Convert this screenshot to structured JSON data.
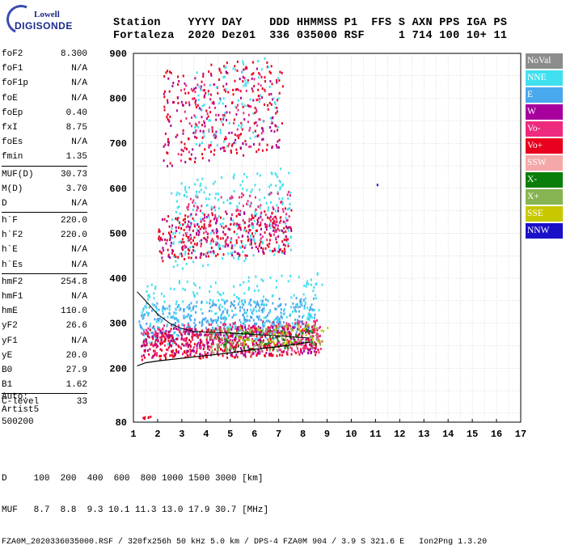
{
  "logo": {
    "line1": "Lowell",
    "line2": "DIGISONDE"
  },
  "header": {
    "labels": "Station    YYYY DAY    DDD HHMMSS P1  FFS S AXN PPS IGA PS",
    "values": "Fortaleza  2020 Dez01  336 035000 RSF     1 714 100 10+ 11"
  },
  "params": {
    "group1": [
      {
        "label": "foF2",
        "value": "8.300"
      },
      {
        "label": "foF1",
        "value": "N/A"
      },
      {
        "label": "foF1p",
        "value": "N/A"
      },
      {
        "label": "foE",
        "value": "N/A"
      },
      {
        "label": "foEp",
        "value": "0.40"
      },
      {
        "label": "fxI",
        "value": "8.75"
      },
      {
        "label": "foEs",
        "value": "N/A"
      },
      {
        "label": "fmin",
        "value": "1.35"
      }
    ],
    "group2": [
      {
        "label": "MUF(D)",
        "value": "30.73"
      },
      {
        "label": "M(D)",
        "value": "3.70"
      },
      {
        "label": "D",
        "value": "N/A"
      }
    ],
    "group3": [
      {
        "label": "h`F",
        "value": "220.0"
      },
      {
        "label": "h`F2",
        "value": "220.0"
      },
      {
        "label": "h`E",
        "value": "N/A"
      },
      {
        "label": "h`Es",
        "value": "N/A"
      }
    ],
    "group4": [
      {
        "label": "hmF2",
        "value": "254.8"
      },
      {
        "label": "hmF1",
        "value": "N/A"
      },
      {
        "label": "hmE",
        "value": "110.0"
      },
      {
        "label": "yF2",
        "value": "26.6"
      },
      {
        "label": "yF1",
        "value": "N/A"
      },
      {
        "label": "yE",
        "value": "20.0"
      },
      {
        "label": "B0",
        "value": "27.9"
      },
      {
        "label": "B1",
        "value": "1.62"
      }
    ],
    "group5": [
      {
        "label": "C-level",
        "value": "33"
      }
    ]
  },
  "auto": {
    "line1": "Auto:",
    "line2": "Artist5",
    "line3": "500200"
  },
  "footer": {
    "d_label": "D",
    "d_values": "100  200  400  600  800 1000 1500 3000 [km]",
    "muf_label": "MUF",
    "muf_values": "8.7  8.8  9.3 10.1 11.3 13.0 17.9 30.7 [MHz]",
    "info": "FZA0M_2020336035000.RSF / 320fx256h 50 kHz 5.0 km / DPS-4 FZA0M 904 / 3.9 S 321.6 E   Ion2Png 1.3.20"
  },
  "legend": [
    {
      "label": "NoVal",
      "color": "#8c8c8c"
    },
    {
      "label": "NNE",
      "color": "#40e0f0"
    },
    {
      "label": "E",
      "color": "#4aa8ee"
    },
    {
      "label": "W",
      "color": "#a8009c"
    },
    {
      "label": "Vo-",
      "color": "#ee2a7e"
    },
    {
      "label": "Vo+",
      "color": "#e8001e"
    },
    {
      "label": "SSW",
      "color": "#f4a8a8"
    },
    {
      "label": "X-",
      "color": "#0a7e0a"
    },
    {
      "label": "X+",
      "color": "#86b452"
    },
    {
      "label": "SSE",
      "color": "#c8c800"
    },
    {
      "label": "NNW",
      "color": "#1a10c8"
    }
  ],
  "chart_data": {
    "type": "scatter",
    "xlabel": "",
    "ylabel": "",
    "xlim": [
      1,
      17
    ],
    "ylim": [
      80,
      900
    ],
    "x_ticks": [
      1,
      2,
      3,
      4,
      5,
      6,
      7,
      8,
      9,
      10,
      11,
      12,
      13,
      14,
      15,
      16,
      17
    ],
    "y_ticks": [
      80,
      200,
      300,
      400,
      500,
      600,
      700,
      800,
      900
    ],
    "y_tick_labels": [
      "80",
      "200",
      "300",
      "400",
      "500",
      "600",
      "700",
      "800",
      "900"
    ],
    "grid": true,
    "clusters": [
      {
        "color_key": "E",
        "x_range": [
          1.2,
          8.5
        ],
        "y_range": [
          270,
          360
        ],
        "density": 380
      },
      {
        "color_key": "NNE",
        "x_range": [
          1.3,
          8.8
        ],
        "y_range": [
          250,
          420
        ],
        "density": 260
      },
      {
        "color_key": "Vo+",
        "x_range": [
          1.3,
          8.6
        ],
        "y_range": [
          220,
          300
        ],
        "density": 420
      },
      {
        "color_key": "Vo-",
        "x_range": [
          1.3,
          8.8
        ],
        "y_range": [
          225,
          310
        ],
        "density": 260
      },
      {
        "color_key": "W",
        "x_range": [
          1.3,
          8.5
        ],
        "y_range": [
          225,
          300
        ],
        "density": 180
      },
      {
        "color_key": "X+",
        "x_range": [
          4,
          8.8
        ],
        "y_range": [
          235,
          300
        ],
        "density": 120
      },
      {
        "color_key": "X-",
        "x_range": [
          4.5,
          8.5
        ],
        "y_range": [
          240,
          290
        ],
        "density": 60
      },
      {
        "color_key": "SSE",
        "x_range": [
          5,
          9
        ],
        "y_range": [
          250,
          300
        ],
        "density": 40
      },
      {
        "color_key": "NNE",
        "x_range": [
          2.5,
          7.5
        ],
        "y_range": [
          420,
          650
        ],
        "density": 260
      },
      {
        "color_key": "Vo+",
        "x_range": [
          2,
          7.5
        ],
        "y_range": [
          440,
          560
        ],
        "density": 220
      },
      {
        "color_key": "W",
        "x_range": [
          2,
          7.5
        ],
        "y_range": [
          440,
          560
        ],
        "density": 120
      },
      {
        "color_key": "Vo-",
        "x_range": [
          3,
          7.5
        ],
        "y_range": [
          470,
          600
        ],
        "density": 120
      },
      {
        "color_key": "Vo+",
        "x_range": [
          2.2,
          7.2
        ],
        "y_range": [
          650,
          900
        ],
        "density": 200
      },
      {
        "color_key": "W",
        "x_range": [
          2.2,
          7
        ],
        "y_range": [
          650,
          880
        ],
        "density": 110
      },
      {
        "color_key": "NNE",
        "x_range": [
          3.5,
          7
        ],
        "y_range": [
          680,
          900
        ],
        "density": 90
      },
      {
        "color_key": "Vo-",
        "x_range": [
          2.5,
          6.5
        ],
        "y_range": [
          660,
          860
        ],
        "density": 70
      },
      {
        "color_key": "Vo+",
        "x_range": [
          1.3,
          1.7
        ],
        "y_range": [
          90,
          95
        ],
        "density": 6
      }
    ],
    "profile_upper": [
      [
        1.15,
        370
      ],
      [
        1.5,
        350
      ],
      [
        2,
        320
      ],
      [
        2.5,
        300
      ],
      [
        3,
        288
      ],
      [
        3.5,
        282
      ],
      [
        4,
        280
      ],
      [
        5,
        278
      ],
      [
        6,
        275
      ],
      [
        7,
        272
      ],
      [
        8,
        268
      ],
      [
        8.3,
        267
      ]
    ],
    "profile_lower": [
      [
        1.15,
        205
      ],
      [
        1.5,
        212
      ],
      [
        2,
        216
      ],
      [
        3,
        222
      ],
      [
        4,
        228
      ],
      [
        5,
        234
      ],
      [
        6,
        242
      ],
      [
        7,
        248
      ],
      [
        7.8,
        254
      ],
      [
        8.3,
        258
      ],
      [
        8.3,
        256
      ]
    ]
  }
}
